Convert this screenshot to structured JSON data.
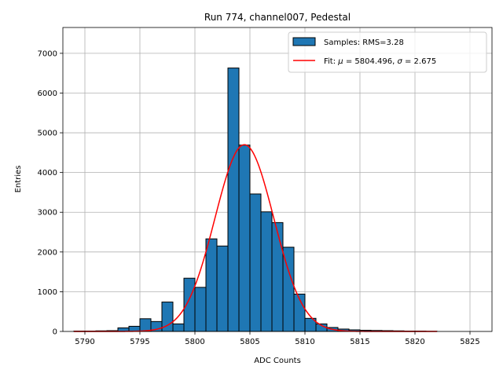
{
  "chart_data": {
    "type": "bar",
    "title": "Run 774, channel007, Pedestal",
    "xlabel": "ADC Counts",
    "ylabel": "Entries",
    "xlim": [
      5788,
      5827
    ],
    "ylim": [
      0,
      7650
    ],
    "xticks": [
      5790,
      5795,
      5800,
      5805,
      5810,
      5815,
      5820,
      5825
    ],
    "yticks": [
      0,
      1000,
      2000,
      3000,
      4000,
      5000,
      6000,
      7000
    ],
    "grid": true,
    "legend_position": "top-right",
    "bin_width": 1,
    "series": [
      {
        "name": "Samples: RMS=3.28",
        "type": "histogram",
        "color": "#1f77b4",
        "bin_starts": [
          5789,
          5790,
          5791,
          5792,
          5793,
          5794,
          5795,
          5796,
          5797,
          5798,
          5799,
          5800,
          5801,
          5802,
          5803,
          5804,
          5805,
          5806,
          5807,
          5808,
          5809,
          5810,
          5811,
          5812,
          5813,
          5814,
          5815,
          5816,
          5817,
          5818,
          5819,
          5820,
          5821
        ],
        "values": [
          10,
          10,
          15,
          20,
          90,
          130,
          320,
          250,
          740,
          190,
          1340,
          1110,
          2330,
          2150,
          6630,
          4690,
          3460,
          3010,
          2740,
          2120,
          940,
          330,
          190,
          100,
          60,
          40,
          30,
          25,
          20,
          15,
          10,
          10,
          5
        ]
      },
      {
        "name_parts": [
          "Fit: ",
          "μ",
          " = 5804.496, ",
          "σ",
          " = 2.675"
        ],
        "type": "line",
        "color": "#ff0000",
        "fit": {
          "function": "gaussian",
          "mu": 5804.496,
          "sigma": 2.675,
          "amplitude": 4700,
          "x_range": [
            5789,
            5822
          ]
        }
      }
    ]
  }
}
